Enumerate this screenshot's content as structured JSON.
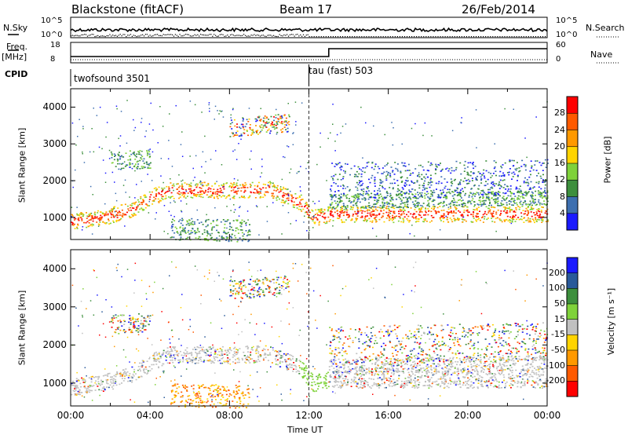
{
  "header": {
    "radar": "Blackstone (fitACF)",
    "beam": "Beam 17",
    "date": "26/Feb/2014"
  },
  "strip_labels": {
    "nsky": "N.Sky",
    "nsearch": "N.Search",
    "freq": "Freq.",
    "freq_unit": "[MHz]",
    "nave": "Nave",
    "cpid": "CPID",
    "nsky_ticks": [
      "10^5",
      "10^0"
    ],
    "nsearch_ticks": [
      "10^5",
      "10^0"
    ],
    "freq_ticks": [
      "18",
      "8"
    ],
    "nave_ticks": [
      "60",
      "0"
    ]
  },
  "programs": [
    {
      "label": "twofsound 3501",
      "start_hour": 0
    },
    {
      "label": "tau (fast) 503",
      "start_hour": 12
    }
  ],
  "chart_data": [
    {
      "type": "heatmap",
      "name": "power",
      "ylabel": "Slant Range [km]",
      "xlim": [
        0,
        24
      ],
      "ylim": [
        400,
        4500
      ],
      "yticks": [
        "1000",
        "2000",
        "3000",
        "4000"
      ],
      "colorbar": {
        "label": "Power [dB]",
        "ticks": [
          "28",
          "24",
          "20",
          "16",
          "12",
          "8",
          "4"
        ],
        "colors": [
          "#ff0000",
          "#ff5a00",
          "#ff9900",
          "#ffd400",
          "#7fd23a",
          "#3d8f3d",
          "#3d6fb0",
          "#1a1aff"
        ]
      },
      "bands": [
        {
          "x": [
            0,
            1.5,
            3,
            4.2,
            5,
            8,
            10,
            11.6,
            12.2,
            13
          ],
          "y": [
            900,
            1000,
            1200,
            1600,
            1750,
            1750,
            1780,
            1400,
            1000,
            1100
          ],
          "width": 220,
          "level": "high"
        },
        {
          "x": [
            13,
            24
          ],
          "y": [
            1100,
            1100
          ],
          "width": 220,
          "level": "high"
        },
        {
          "x": [
            13,
            24
          ],
          "y": [
            1450,
            1550
          ],
          "width": 200,
          "level": "mid"
        },
        {
          "x": [
            13,
            24
          ],
          "y": [
            2000,
            2100
          ],
          "width": 500,
          "level": "low"
        },
        {
          "x": [
            5,
            9
          ],
          "y": [
            700,
            650
          ],
          "width": 300,
          "level": "mid"
        },
        {
          "x": [
            2,
            4
          ],
          "y": [
            2550,
            2600
          ],
          "width": 250,
          "level": "mid"
        },
        {
          "x": [
            8,
            11
          ],
          "y": [
            3450,
            3600
          ],
          "width": 250,
          "level": "mixed"
        }
      ]
    },
    {
      "type": "heatmap",
      "name": "velocity",
      "ylabel": "Slant Range [km]",
      "xlabel": "Time UT",
      "xlim": [
        0,
        24
      ],
      "ylim": [
        400,
        4500
      ],
      "yticks": [
        "1000",
        "2000",
        "3000",
        "4000"
      ],
      "xticks": [
        "00:00",
        "04:00",
        "08:00",
        "12:00",
        "16:00",
        "20:00",
        "00:00"
      ],
      "colorbar": {
        "label": "Velocity [m s⁻¹]",
        "ticks": [
          "200",
          "100",
          "50",
          "15",
          "-15",
          "-50",
          "-100",
          "-200"
        ],
        "colors": [
          "#1a1aff",
          "#2a5a9a",
          "#3d8f3d",
          "#7fd23a",
          "#c0c0c0",
          "#ffd400",
          "#ff9900",
          "#ff5a00",
          "#ff0000"
        ]
      }
    }
  ]
}
